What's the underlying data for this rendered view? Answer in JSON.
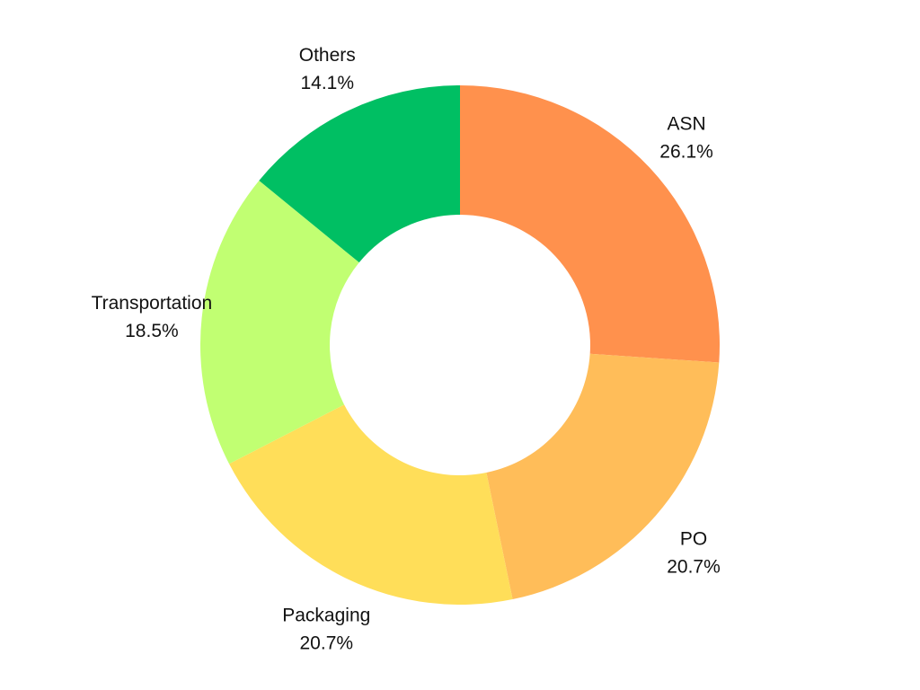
{
  "chart_data": {
    "type": "pie",
    "donut": true,
    "title": "",
    "legend": "none",
    "slices": [
      {
        "label": "ASN",
        "value": 26.1,
        "display": "26.1%",
        "color": "#FF914D"
      },
      {
        "label": "PO",
        "value": 20.7,
        "display": "20.7%",
        "color": "#FFBD59"
      },
      {
        "label": "Packaging",
        "value": 20.7,
        "display": "20.7%",
        "color": "#FFDE59"
      },
      {
        "label": "Transportation",
        "value": 18.5,
        "display": "18.5%",
        "color": "#C1FF72"
      },
      {
        "label": "Others",
        "value": 14.1,
        "display": "14.1%",
        "color": "#00BF63"
      }
    ]
  }
}
